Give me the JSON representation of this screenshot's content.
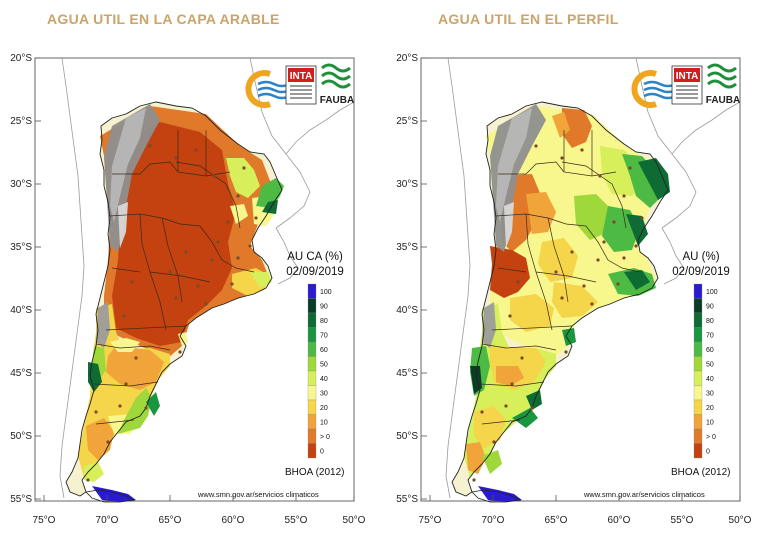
{
  "panels": [
    {
      "title": "AGUA UTIL EN LA CAPA ARABLE",
      "legend_label": "AU CA (%)",
      "date": "02/09/2019",
      "model": "BHOA (2012)",
      "url": "www.smn.gov.ar/servicios climaticos",
      "logos": [
        "INTA",
        "FAUBA"
      ]
    },
    {
      "title": "AGUA UTIL EN EL PERFIL",
      "legend_label": "AU (%)",
      "date": "02/09/2019",
      "model": "BHOA (2012)",
      "url": "www.smn.gov.ar/servicios climaticos",
      "logos": [
        "INTA",
        "FAUBA"
      ]
    }
  ],
  "axes": {
    "lat_labels": [
      "20°S",
      "25°S",
      "30°S",
      "35°S",
      "40°S",
      "45°S",
      "50°S",
      "55°S"
    ],
    "lon_labels": [
      "75°O",
      "70°O",
      "65°O",
      "60°O",
      "55°O",
      "50°O"
    ]
  },
  "legend": {
    "labels": [
      "100",
      "90",
      "80",
      "70",
      "60",
      "50",
      "40",
      "30",
      "20",
      "10",
      "> 0",
      "0"
    ],
    "colors": [
      "#2a1ad0",
      "#0a3d26",
      "#0e6b34",
      "#1a9640",
      "#4dba44",
      "#9fd83a",
      "#d6ef5a",
      "#f7f78e",
      "#f5d549",
      "#f0a43a",
      "#e07a2a",
      "#c4420f"
    ]
  }
}
